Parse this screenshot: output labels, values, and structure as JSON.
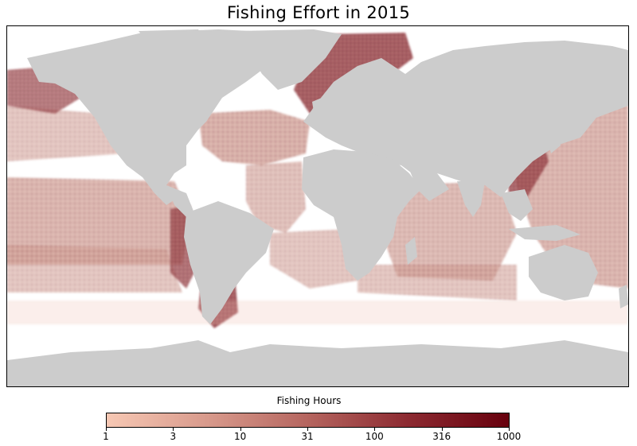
{
  "title": "Fishing Effort in 2015",
  "legend": {
    "label": "Fishing Hours",
    "ticks": [
      "1",
      "3",
      "10",
      "31",
      "100",
      "316",
      "1000"
    ],
    "colors": {
      "low": "#f7c8b4",
      "mid_low": "#d89a8c",
      "mid": "#b5655f",
      "mid_high": "#8c2a31",
      "high": "#67000d"
    },
    "scale": "log"
  },
  "map": {
    "land_color": "#cccccc",
    "ocean_color": "#ffffff",
    "projection": "equirectangular"
  }
}
